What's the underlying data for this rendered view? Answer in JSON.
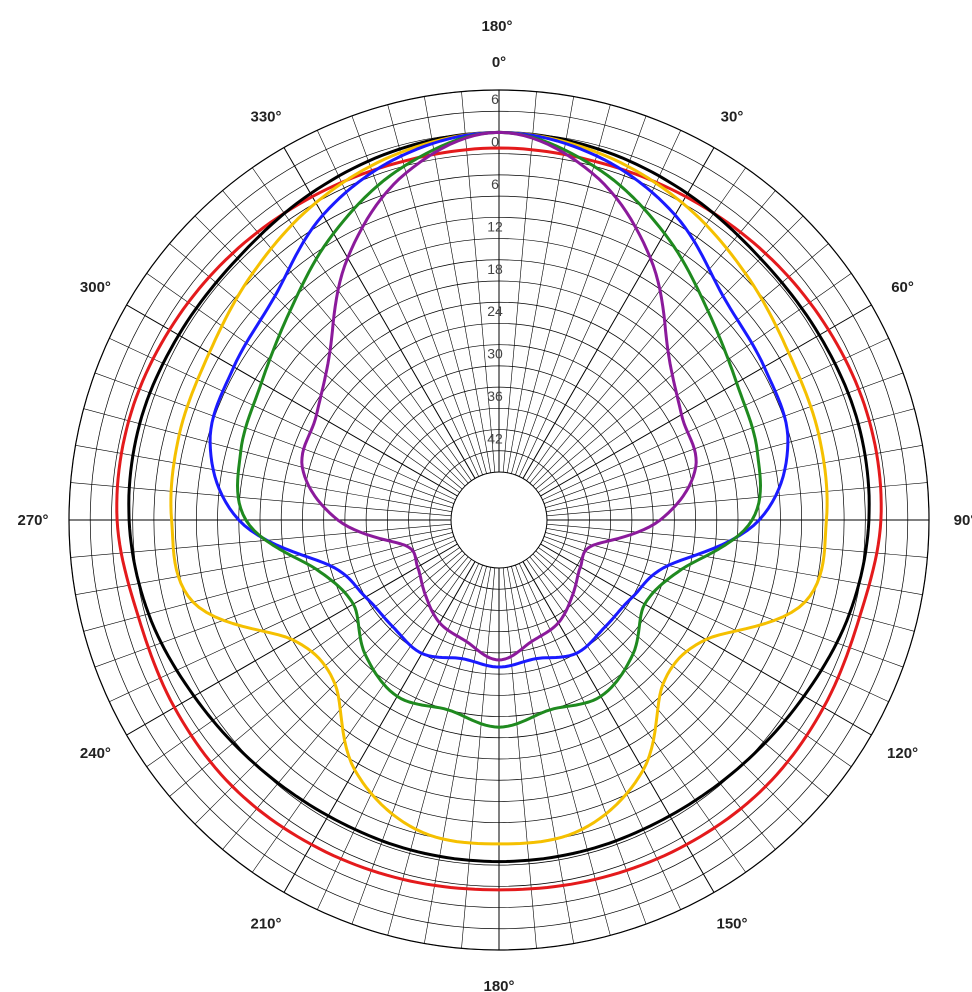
{
  "chart_data": {
    "type": "line",
    "projection": "polar",
    "title": "",
    "top_labels": [
      "180°",
      "0°"
    ],
    "angle_labels": [
      {
        "angle": 30,
        "text": "30°"
      },
      {
        "angle": 60,
        "text": "60°"
      },
      {
        "angle": 90,
        "text": "90°"
      },
      {
        "angle": 120,
        "text": "120°"
      },
      {
        "angle": 150,
        "text": "150°"
      },
      {
        "angle": 180,
        "text": "180°"
      },
      {
        "angle": 210,
        "text": "210°"
      },
      {
        "angle": 240,
        "text": "240°"
      },
      {
        "angle": 270,
        "text": "270°"
      },
      {
        "angle": 300,
        "text": "300°"
      },
      {
        "angle": 330,
        "text": "330°"
      }
    ],
    "radial_axis": {
      "tick_labels": [
        "6",
        "0",
        "6",
        "12",
        "18",
        "24",
        "30",
        "36",
        "42"
      ],
      "tick_values": [
        6,
        0,
        -6,
        -12,
        -18,
        -24,
        -30,
        -36,
        -42
      ],
      "range": [
        -48,
        6
      ],
      "unit": "dB"
    },
    "angular_grid_step_deg": 5,
    "grid": true,
    "legend": "none",
    "series": [
      {
        "color": "#e41a1c",
        "angles": [
          0,
          15,
          30,
          45,
          60,
          75,
          90,
          105,
          120,
          135,
          150,
          165,
          180,
          195,
          210,
          225,
          240,
          255,
          270,
          285,
          300,
          315,
          330,
          345
        ],
        "values": [
          -2.2,
          -2.3,
          -2.0,
          -1.5,
          -1.0,
          -0.6,
          -0.8,
          -2.0,
          -1.8,
          -1.5,
          -1.8,
          -2.2,
          -2.5,
          -2.2,
          -1.8,
          -1.5,
          -1.8,
          -2.0,
          -0.8,
          -0.6,
          -1.0,
          -1.5,
          -2.0,
          -2.3
        ]
      },
      {
        "color": "#000000",
        "angles": [
          0,
          15,
          30,
          45,
          60,
          75,
          90,
          105,
          120,
          135,
          150,
          165,
          180,
          195,
          210,
          225,
          240,
          255,
          270,
          285,
          300,
          315,
          330,
          345
        ],
        "values": [
          0.0,
          -0.5,
          -1.5,
          -2.5,
          -2.5,
          -2.2,
          -2.5,
          -3.5,
          -5.0,
          -6.0,
          -6.5,
          -6.5,
          -6.5,
          -6.5,
          -6.5,
          -6.0,
          -5.0,
          -3.5,
          -2.5,
          -2.2,
          -2.5,
          -2.5,
          -1.5,
          -0.5
        ]
      },
      {
        "color": "#f5c000",
        "angles": [
          0,
          15,
          30,
          45,
          60,
          75,
          90,
          105,
          120,
          135,
          150,
          165,
          180,
          195,
          210,
          225,
          240,
          255,
          270,
          285,
          300,
          315,
          330,
          345
        ],
        "values": [
          0.0,
          -1.0,
          -3.0,
          -5.5,
          -7.5,
          -8.0,
          -8.5,
          -10.0,
          -21.0,
          -22.0,
          -14.0,
          -9.5,
          -9.0,
          -9.5,
          -14.0,
          -22.0,
          -21.0,
          -10.0,
          -8.5,
          -8.0,
          -7.5,
          -5.5,
          -3.0,
          -1.0
        ]
      },
      {
        "color": "#1a1aff",
        "angles": [
          0,
          15,
          30,
          45,
          60,
          75,
          90,
          105,
          120,
          135,
          150,
          165,
          180,
          195,
          210,
          225,
          240,
          255,
          270,
          285,
          300,
          315,
          330,
          345
        ],
        "values": [
          0.0,
          -1.5,
          -5.0,
          -10.0,
          -11.5,
          -12.5,
          -18.0,
          -30.0,
          -33.0,
          -33.5,
          -33.0,
          -34.5,
          -34.0,
          -34.5,
          -33.0,
          -33.5,
          -33.0,
          -30.0,
          -18.0,
          -12.5,
          -11.5,
          -10.0,
          -5.0,
          -1.5
        ]
      },
      {
        "color": "#1f8a1f",
        "angles": [
          0,
          15,
          30,
          45,
          60,
          75,
          90,
          105,
          120,
          135,
          150,
          165,
          180,
          195,
          210,
          225,
          240,
          255,
          270,
          285,
          300,
          315,
          330,
          345
        ],
        "values": [
          0.0,
          -3.0,
          -8.0,
          -13.0,
          -16.0,
          -17.0,
          -19.0,
          -28.0,
          -31.0,
          -28.0,
          -26.0,
          -27.0,
          -25.5,
          -27.0,
          -26.0,
          -28.0,
          -31.0,
          -28.0,
          -19.0,
          -17.0,
          -16.0,
          -13.0,
          -8.0,
          -3.0
        ]
      },
      {
        "color": "#8b1a9b",
        "angles": [
          0,
          15,
          30,
          45,
          60,
          75,
          90,
          105,
          120,
          135,
          150,
          165,
          180,
          195,
          210,
          225,
          240,
          255,
          270,
          285,
          300,
          315,
          330,
          345
        ],
        "values": [
          0.0,
          -4.0,
          -12.0,
          -21.0,
          -25.0,
          -26.0,
          -32.0,
          -41.0,
          -41.5,
          -40.0,
          -38.0,
          -37.0,
          -35.0,
          -37.0,
          -38.0,
          -40.0,
          -41.5,
          -41.0,
          -32.0,
          -26.0,
          -25.0,
          -21.0,
          -12.0,
          -4.0
        ]
      }
    ]
  }
}
